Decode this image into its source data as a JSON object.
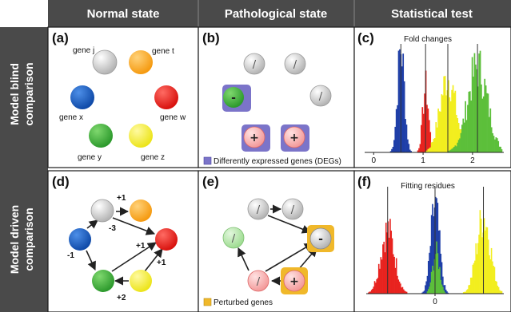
{
  "headers": {
    "col1": "Normal state",
    "col2": "Pathological state",
    "col3": "Statistical test",
    "row1": [
      "Model blind",
      "comparison"
    ],
    "row2": [
      "Model driven",
      "comparison"
    ]
  },
  "panels": {
    "a": "(a)",
    "b": "(b)",
    "c": "(c)",
    "d": "(d)",
    "e": "(e)",
    "f": "(f)"
  },
  "genes": {
    "j": "gene j",
    "t": "gene t",
    "x": "gene x",
    "w": "gene w",
    "y": "gene y",
    "z": "gene z"
  },
  "colors": {
    "gene_j": "#c8c8c8",
    "gene_t": "#f5a623",
    "gene_x": "#1f5fbf",
    "gene_w": "#e8231f",
    "gene_y": "#3aa83a",
    "gene_z": "#f2ee1e",
    "deg_box": "#7b74c9",
    "perturbed_box": "#f0b82a",
    "header_bg": "#4a4a4a"
  },
  "symbols": {
    "neutral": "/",
    "down": "-",
    "up": "+"
  },
  "edges": {
    "j_t": "+1",
    "j_w": "-3",
    "x_j": "-1",
    "y_w": "+1",
    "z_w": "+1",
    "z_y": "+2"
  },
  "legends": {
    "deg": "Differently expressed genes (DEGs)",
    "perturbed": "Perturbed genes"
  },
  "charts": {
    "c_title": "Fold changes",
    "f_title": "Fitting residues"
  },
  "chart_data": [
    {
      "type": "histogram",
      "title": "Fold changes",
      "xlabel": "",
      "ylabel": "",
      "xlim": [
        -0.15,
        2.6
      ],
      "x_ticks": [
        "0",
        "1",
        "2"
      ],
      "x_tick_values": [
        0,
        1,
        2
      ],
      "series": [
        {
          "color": "#1f3fa8",
          "center": 0.55,
          "spread": 0.07,
          "peak": 1.0,
          "marker": 0.55
        },
        {
          "color": "#e8231f",
          "center": 1.05,
          "spread": 0.06,
          "peak": 0.62,
          "marker": 1.05
        },
        {
          "color": "#f2ee1e",
          "center": 1.5,
          "spread": 0.16,
          "peak": 0.72,
          "marker": 1.5
        },
        {
          "color": "#5cbf3a",
          "center": 2.1,
          "spread": 0.2,
          "peak": 0.82,
          "marker": 2.1
        }
      ]
    },
    {
      "type": "histogram",
      "title": "Fitting residues",
      "xlabel": "",
      "ylabel": "",
      "xlim": [
        -3.4,
        3.4
      ],
      "x_ticks": [
        "0"
      ],
      "x_tick_values": [
        0
      ],
      "series": [
        {
          "color": "#e8231f",
          "center": -2.4,
          "spread": 0.35,
          "peak": 0.62,
          "marker": -2.4
        },
        {
          "color": "#1f3fa8",
          "center": 0.0,
          "spread": 0.22,
          "peak": 0.85,
          "marker": 0.0
        },
        {
          "color": "#5cbf3a",
          "center": 0.05,
          "spread": 0.18,
          "peak": 0.4,
          "marker": null
        },
        {
          "color": "#f2ee1e",
          "center": 2.45,
          "spread": 0.35,
          "peak": 0.75,
          "marker": 2.45
        }
      ]
    }
  ]
}
